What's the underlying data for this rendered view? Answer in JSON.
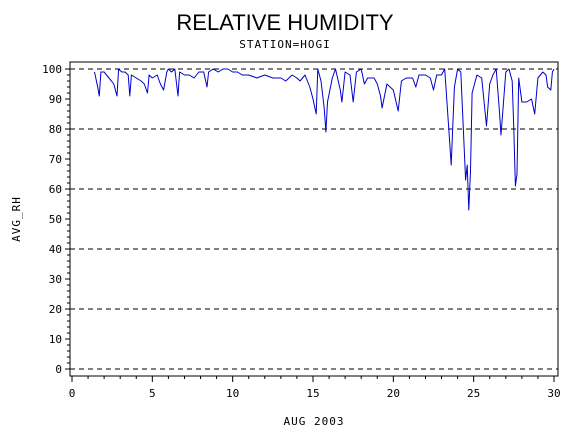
{
  "chart_data": {
    "type": "line",
    "title": "RELATIVE HUMIDITY",
    "subtitle": "STATION=HOGI",
    "xlabel": "AUG 2003",
    "ylabel": "AVG_RH",
    "xlim": [
      0,
      30
    ],
    "ylim": [
      0,
      100
    ],
    "x_ticks": [
      0,
      5,
      10,
      15,
      20,
      25,
      30
    ],
    "y_ticks": [
      0,
      10,
      20,
      30,
      40,
      50,
      60,
      70,
      80,
      90,
      100
    ],
    "gridlines_y": [
      0,
      20,
      40,
      60,
      80,
      100
    ],
    "grid": "horizontal dashed",
    "line_color": "#0000cc",
    "series": [
      {
        "values": [
          [
            1.4,
            99
          ],
          [
            1.6,
            94
          ],
          [
            1.7,
            91
          ],
          [
            1.8,
            99
          ],
          [
            2.0,
            99
          ],
          [
            2.3,
            97
          ],
          [
            2.6,
            95
          ],
          [
            2.8,
            91
          ],
          [
            2.9,
            100
          ],
          [
            3.1,
            99
          ],
          [
            3.3,
            99
          ],
          [
            3.5,
            98
          ],
          [
            3.6,
            91
          ],
          [
            3.7,
            98
          ],
          [
            4.0,
            97
          ],
          [
            4.3,
            96
          ],
          [
            4.5,
            95
          ],
          [
            4.7,
            92
          ],
          [
            4.8,
            98
          ],
          [
            5.0,
            97
          ],
          [
            5.3,
            98
          ],
          [
            5.5,
            95
          ],
          [
            5.7,
            93
          ],
          [
            5.9,
            99
          ],
          [
            6.0,
            100
          ],
          [
            6.2,
            99
          ],
          [
            6.4,
            100
          ],
          [
            6.6,
            91
          ],
          [
            6.7,
            99
          ],
          [
            7.0,
            98
          ],
          [
            7.3,
            98
          ],
          [
            7.6,
            97
          ],
          [
            7.9,
            99
          ],
          [
            8.2,
            99
          ],
          [
            8.4,
            94
          ],
          [
            8.5,
            99
          ],
          [
            8.8,
            100
          ],
          [
            9.1,
            99
          ],
          [
            9.4,
            100
          ],
          [
            9.7,
            100
          ],
          [
            10.0,
            99
          ],
          [
            10.3,
            99
          ],
          [
            10.6,
            98
          ],
          [
            11.0,
            98
          ],
          [
            11.5,
            97
          ],
          [
            12.0,
            98
          ],
          [
            12.5,
            97
          ],
          [
            13.0,
            97
          ],
          [
            13.3,
            96
          ],
          [
            13.7,
            98
          ],
          [
            14.0,
            97
          ],
          [
            14.2,
            96
          ],
          [
            14.5,
            98
          ],
          [
            14.8,
            94
          ],
          [
            15.0,
            90
          ],
          [
            15.2,
            85
          ],
          [
            15.3,
            100
          ],
          [
            15.5,
            96
          ],
          [
            15.7,
            87
          ],
          [
            15.8,
            79
          ],
          [
            15.9,
            89
          ],
          [
            16.2,
            97
          ],
          [
            16.4,
            100
          ],
          [
            16.7,
            93
          ],
          [
            16.8,
            89
          ],
          [
            17.0,
            99
          ],
          [
            17.3,
            98
          ],
          [
            17.5,
            89
          ],
          [
            17.7,
            99
          ],
          [
            18.0,
            100
          ],
          [
            18.2,
            95
          ],
          [
            18.4,
            97
          ],
          [
            18.8,
            97
          ],
          [
            19.0,
            95
          ],
          [
            19.2,
            91
          ],
          [
            19.3,
            87
          ],
          [
            19.6,
            95
          ],
          [
            20.0,
            93
          ],
          [
            20.3,
            86
          ],
          [
            20.5,
            96
          ],
          [
            20.8,
            97
          ],
          [
            21.2,
            97
          ],
          [
            21.4,
            94
          ],
          [
            21.6,
            98
          ],
          [
            22.0,
            98
          ],
          [
            22.3,
            97
          ],
          [
            22.5,
            93
          ],
          [
            22.7,
            98
          ],
          [
            23.0,
            98
          ],
          [
            23.2,
            100
          ],
          [
            23.5,
            76
          ],
          [
            23.6,
            68
          ],
          [
            23.8,
            94
          ],
          [
            24.0,
            100
          ],
          [
            24.2,
            99
          ],
          [
            24.3,
            87
          ],
          [
            24.5,
            63
          ],
          [
            24.6,
            68
          ],
          [
            24.7,
            53
          ],
          [
            24.8,
            66
          ],
          [
            24.9,
            92
          ],
          [
            25.2,
            98
          ],
          [
            25.5,
            97
          ],
          [
            25.8,
            81
          ],
          [
            26.0,
            95
          ],
          [
            26.2,
            98
          ],
          [
            26.4,
            100
          ],
          [
            26.6,
            86
          ],
          [
            26.7,
            78
          ],
          [
            27.0,
            99
          ],
          [
            27.2,
            100
          ],
          [
            27.4,
            96
          ],
          [
            27.5,
            80
          ],
          [
            27.6,
            61
          ],
          [
            27.7,
            65
          ],
          [
            27.8,
            97
          ],
          [
            28.0,
            89
          ],
          [
            28.3,
            89
          ],
          [
            28.6,
            90
          ],
          [
            28.8,
            85
          ],
          [
            29.0,
            97
          ],
          [
            29.3,
            99
          ],
          [
            29.5,
            98
          ],
          [
            29.6,
            94
          ],
          [
            29.8,
            93
          ],
          [
            29.9,
            99
          ],
          [
            30.0,
            100
          ]
        ]
      }
    ]
  }
}
